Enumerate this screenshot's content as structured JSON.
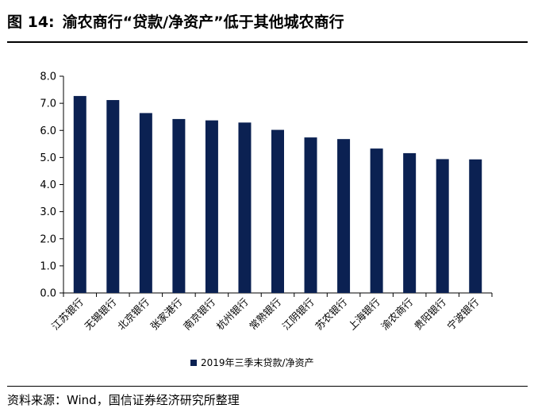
{
  "figure": {
    "label": "图 14:",
    "title": "渝农商行“贷款/净资产”低于其他城农商行"
  },
  "source": "资料来源：Wind，国信证券经济研究所整理",
  "colors": {
    "bar": "#0b2152",
    "axis": "#000000",
    "text": "#000000"
  },
  "chart_data": {
    "type": "bar",
    "categories": [
      "江苏银行",
      "无锡银行",
      "北京银行",
      "张家港行",
      "南京银行",
      "杭州银行",
      "常熟银行",
      "江阴银行",
      "苏农银行",
      "上海银行",
      "渝农商行",
      "贵阳银行",
      "宁波银行"
    ],
    "series": [
      {
        "name": "2019年三季末贷款/净资产",
        "values": [
          7.27,
          7.12,
          6.64,
          6.42,
          6.37,
          6.29,
          6.02,
          5.74,
          5.68,
          5.33,
          5.16,
          4.94,
          4.93
        ]
      }
    ],
    "ylim": [
      0,
      8
    ],
    "yticks": [
      "0.0",
      "1.0",
      "2.0",
      "3.0",
      "4.0",
      "5.0",
      "6.0",
      "7.0",
      "8.0"
    ],
    "grid": false,
    "legend_position": "bottom"
  }
}
